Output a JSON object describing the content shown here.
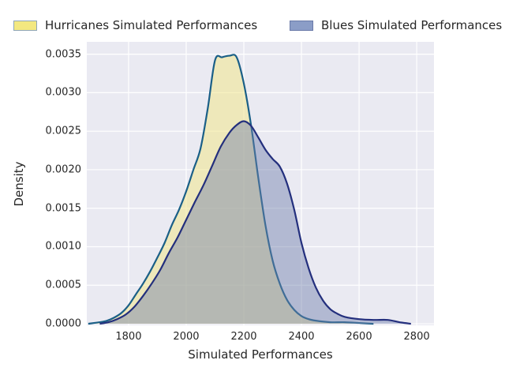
{
  "figure": {
    "background": "#ffffff",
    "plot_background": "#eaeaf2",
    "grid_color": "#ffffff",
    "text_color": "#262626"
  },
  "legend": {
    "position": "top",
    "items": [
      {
        "label": "Hurricanes Simulated Performances",
        "swatch_fill": "#f3e880",
        "swatch_border": "#8fa6b9"
      },
      {
        "label": "Blues Simulated Performances",
        "swatch_fill": "#8b9dc7",
        "swatch_border": "#6a7aa8"
      }
    ]
  },
  "chart_data": {
    "type": "area",
    "subtype": "kde-density",
    "title": "",
    "xlabel": "Simulated Performances",
    "ylabel": "Density",
    "xlim": [
      1655,
      2860
    ],
    "ylim": [
      -2e-05,
      0.00366
    ],
    "grid": true,
    "xticks": [
      {
        "value": 1800,
        "label": "1800"
      },
      {
        "value": 2000,
        "label": "2000"
      },
      {
        "value": 2200,
        "label": "2200"
      },
      {
        "value": 2400,
        "label": "2400"
      },
      {
        "value": 2600,
        "label": "2600"
      },
      {
        "value": 2800,
        "label": "2800"
      }
    ],
    "yticks": [
      {
        "value": 0.0,
        "label": "0.0000"
      },
      {
        "value": 0.0005,
        "label": "0.0005"
      },
      {
        "value": 0.001,
        "label": "0.0010"
      },
      {
        "value": 0.0015,
        "label": "0.0015"
      },
      {
        "value": 0.002,
        "label": "0.0020"
      },
      {
        "value": 0.0025,
        "label": "0.0025"
      },
      {
        "value": 0.003,
        "label": "0.0030"
      },
      {
        "value": 0.0035,
        "label": "0.0035"
      }
    ],
    "series": [
      {
        "name": "Hurricanes Simulated Performances",
        "line_color": "#1a5f87",
        "fill_color": "rgba(240,230,140,0.55)",
        "line_width": 2.2,
        "x": [
          1660,
          1700,
          1725,
          1750,
          1775,
          1800,
          1825,
          1850,
          1875,
          1900,
          1925,
          1950,
          1975,
          2000,
          2025,
          2050,
          2075,
          2100,
          2125,
          2150,
          2175,
          2200,
          2225,
          2250,
          2275,
          2300,
          2325,
          2350,
          2375,
          2400,
          2425,
          2450,
          2500,
          2550,
          2600,
          2650
        ],
        "density": [
          0,
          2e-05,
          4e-05,
          8e-05,
          0.00014,
          0.00024,
          0.00038,
          0.00052,
          0.00068,
          0.00086,
          0.00105,
          0.00128,
          0.00148,
          0.00172,
          0.002,
          0.00228,
          0.0028,
          0.00342,
          0.00346,
          0.00348,
          0.00346,
          0.00312,
          0.00258,
          0.0019,
          0.00128,
          0.00082,
          0.00052,
          0.00031,
          0.00018,
          0.0001,
          6e-05,
          4e-05,
          2e-05,
          2e-05,
          1e-05,
          0
        ]
      },
      {
        "name": "Blues Simulated Performances",
        "line_color": "#232f7d",
        "fill_color": "rgba(110,126,170,0.45)",
        "line_width": 2.2,
        "x": [
          1700,
          1730,
          1760,
          1790,
          1820,
          1850,
          1880,
          1910,
          1940,
          1970,
          2000,
          2030,
          2060,
          2090,
          2120,
          2150,
          2175,
          2200,
          2225,
          2250,
          2275,
          2300,
          2325,
          2350,
          2375,
          2400,
          2425,
          2450,
          2475,
          2500,
          2525,
          2550,
          2600,
          2650,
          2700,
          2740,
          2780
        ],
        "density": [
          0,
          2e-05,
          6e-05,
          0.00012,
          0.00022,
          0.00036,
          0.00052,
          0.0007,
          0.00092,
          0.00112,
          0.00135,
          0.00158,
          0.0018,
          0.00205,
          0.0023,
          0.00248,
          0.00258,
          0.00263,
          0.00257,
          0.00242,
          0.00226,
          0.00214,
          0.00204,
          0.00182,
          0.00148,
          0.00105,
          0.00072,
          0.00047,
          0.0003,
          0.00019,
          0.00013,
          9e-05,
          6e-05,
          5e-05,
          5e-05,
          2e-05,
          0
        ]
      }
    ]
  }
}
